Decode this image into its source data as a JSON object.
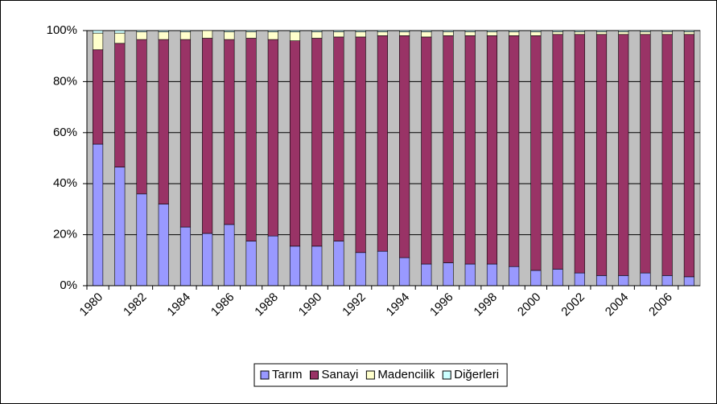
{
  "chart_data": {
    "type": "stacked_bar",
    "categories": [
      "1980",
      null,
      "1982",
      null,
      "1984",
      null,
      "1986",
      null,
      "1988",
      null,
      "1990",
      null,
      "1992",
      null,
      "1994",
      null,
      "1996",
      null,
      "1998",
      null,
      "2000",
      null,
      "2002",
      null,
      "2004",
      null,
      "2006",
      null
    ],
    "series": [
      {
        "name": "Tarım",
        "color": "#9999ff",
        "values": [
          55.5,
          46.5,
          36,
          32,
          23,
          20.5,
          24,
          17.5,
          19.5,
          15.5,
          15.5,
          17.5,
          13,
          13.5,
          11,
          8.5,
          9,
          8.5,
          8.5,
          7.5,
          6,
          6.5,
          5,
          4,
          4,
          5,
          4,
          3.5
        ]
      },
      {
        "name": "Sanayi",
        "color": "#993366",
        "values": [
          37,
          48.5,
          60.5,
          64.5,
          73.5,
          76.5,
          72.5,
          79.5,
          77,
          80.5,
          81.5,
          80,
          84.5,
          84.5,
          87,
          89,
          89,
          89.5,
          89.5,
          90.5,
          92,
          92,
          93.5,
          94.5,
          94.5,
          93.5,
          94.5,
          95
        ]
      },
      {
        "name": "Madencilik",
        "color": "#ffffcc",
        "values": [
          6.5,
          4,
          3,
          3,
          3,
          3,
          3,
          2.5,
          3,
          3.5,
          2.5,
          2,
          2,
          1.5,
          1.5,
          2,
          1.5,
          1.5,
          1.5,
          1.5,
          1.5,
          1,
          1,
          1,
          1,
          1,
          1,
          1
        ]
      },
      {
        "name": "Diğerleri",
        "color": "#ccffff",
        "values": [
          1,
          1,
          0.5,
          0.5,
          0.5,
          0,
          0.5,
          0.5,
          0.5,
          0.5,
          0.5,
          0.5,
          0.5,
          0.5,
          0.5,
          0.5,
          0.5,
          0.5,
          0.5,
          0.5,
          0.5,
          0.5,
          0.5,
          0.5,
          0.5,
          0.5,
          0.5,
          0.5
        ]
      }
    ],
    "ylim": [
      0,
      100
    ],
    "yticks": [
      {
        "value": 0,
        "label": "0%"
      },
      {
        "value": 20,
        "label": "20%"
      },
      {
        "value": 40,
        "label": "40%"
      },
      {
        "value": 60,
        "label": "60%"
      },
      {
        "value": 80,
        "label": "80%"
      },
      {
        "value": 100,
        "label": "100%"
      }
    ],
    "grid": true,
    "plot_background": "#c0c0c0",
    "legend": "bottom"
  }
}
